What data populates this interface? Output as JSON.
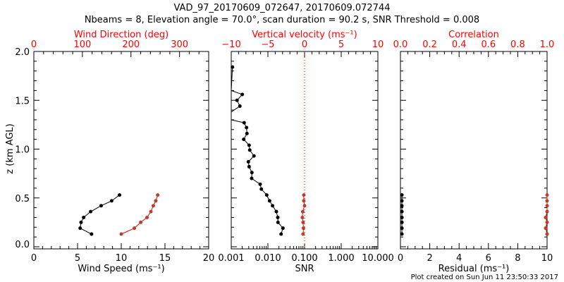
{
  "chart_data": [
    {
      "type": "line",
      "title_line1": "VAD_97_20170609_072647, 20170609.072744",
      "title_line2": "Nbeams = 8, Elevation angle = 70.0°, scan duration = 90.2 s, SNR Threshold = 0.008",
      "ylabel": "z (km AGL)",
      "ylim": [
        0,
        2.0
      ],
      "yticks": [
        "0.0",
        "0.5",
        "1.0",
        "1.5",
        "2.0"
      ],
      "xlabel": "Wind Speed (ms⁻¹)",
      "xlim": [
        0,
        20
      ],
      "xticks": [
        "0",
        "5",
        "10",
        "15",
        "20"
      ],
      "top_xlabel": "Wind Direction (deg)",
      "top_xlim": [
        0,
        360
      ],
      "top_xticks": [
        "0",
        "100",
        "200",
        "300"
      ],
      "series": [
        {
          "name": "Wind Speed",
          "color": "#000000",
          "z": [
            0.53,
            0.47,
            0.42,
            0.36,
            0.3,
            0.25,
            0.19,
            0.13
          ],
          "values": [
            9.8,
            8.9,
            7.7,
            6.5,
            5.7,
            5.4,
            5.3,
            6.6
          ]
        },
        {
          "name": "Wind Direction",
          "color": "#ff0000",
          "z": [
            0.53,
            0.47,
            0.42,
            0.36,
            0.3,
            0.25,
            0.19,
            0.13
          ],
          "values": [
            255,
            251,
            246,
            241,
            233,
            220,
            207,
            180
          ]
        }
      ]
    },
    {
      "type": "line",
      "xlabel": "SNR",
      "xscale": "log",
      "xlim": [
        0.001,
        10
      ],
      "xticks": [
        "0.001",
        "0.010",
        "0.100",
        "1.000",
        "10.000"
      ],
      "top_xlabel": "Vertical velocity (ms⁻¹)",
      "top_xlim": [
        -10,
        10
      ],
      "top_xticks": [
        "−10",
        "−5",
        "0",
        "5",
        "10"
      ],
      "threshold_line": 0.1,
      "series": [
        {
          "name": "SNR",
          "color": "#000000",
          "z": [
            1.84,
            1.6,
            1.56,
            1.5,
            1.44,
            1.38,
            1.3,
            1.27,
            1.22,
            1.16,
            1.1,
            1.04,
            0.99,
            0.93,
            0.87,
            0.82,
            0.76,
            0.7,
            0.64,
            0.59,
            0.53,
            0.47,
            0.42,
            0.36,
            0.3,
            0.25,
            0.19,
            0.13
          ],
          "values": [
            0.00108,
            0.0009,
            0.002,
            0.00144,
            0.00172,
            0.0009,
            0.0009,
            0.00225,
            0.00261,
            0.00268,
            0.00219,
            0.00307,
            0.0032,
            0.00417,
            0.00293,
            0.00307,
            0.00366,
            0.00361,
            0.00615,
            0.00663,
            0.00929,
            0.0111,
            0.0134,
            0.017,
            0.0186,
            0.0188,
            0.0257,
            0.0229
          ]
        },
        {
          "name": "Vertical velocity",
          "color": "#ff0000",
          "z": [
            0.53,
            0.47,
            0.42,
            0.36,
            0.3,
            0.25,
            0.19,
            0.13
          ],
          "values": [
            -0.1,
            -0.1,
            0.0,
            -0.25,
            -0.3,
            -0.2,
            -0.15,
            -0.2
          ]
        }
      ]
    },
    {
      "type": "line",
      "xlabel": "Residual (ms⁻¹)",
      "xlim": [
        0,
        10
      ],
      "xticks": [
        "0",
        "2",
        "4",
        "6",
        "8",
        "10"
      ],
      "top_xlabel": "Correlation",
      "top_xlim": [
        0,
        1
      ],
      "top_xticks": [
        "0.0",
        "0.2",
        "0.4",
        "0.6",
        "0.8",
        "1.0"
      ],
      "series": [
        {
          "name": "Residual",
          "color": "#000000",
          "z": [
            0.53,
            0.47,
            0.42,
            0.36,
            0.3,
            0.25,
            0.19,
            0.13
          ],
          "values": [
            0.1,
            0.1,
            0.1,
            0.1,
            0.1,
            0.1,
            0.1,
            0.1
          ]
        },
        {
          "name": "Correlation",
          "color": "#ff0000",
          "z": [
            0.53,
            0.47,
            0.42,
            0.36,
            0.3,
            0.25,
            0.19,
            0.13
          ],
          "values": [
            1.0,
            1.0,
            1.0,
            1.0,
            0.99,
            1.0,
            0.99,
            1.0
          ]
        }
      ]
    }
  ],
  "footer": "Plot created on Sun Jun 11 23:50:33 2017"
}
